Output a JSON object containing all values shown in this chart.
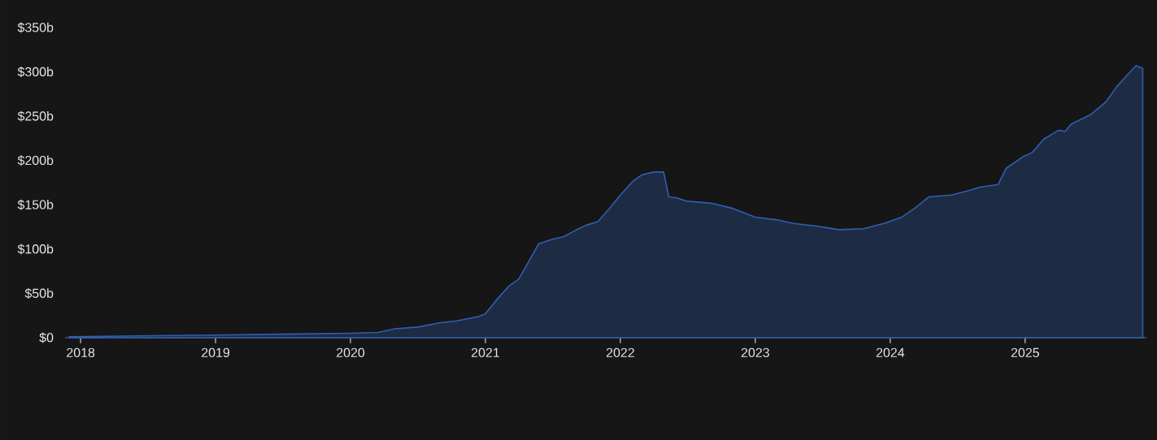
{
  "chart_data": {
    "type": "area",
    "color": "#2f5fb0",
    "x": [
      "2017-12-01",
      "2018-06-01",
      "2019-01-01",
      "2019-07-01",
      "2020-01-01",
      "2020-03-15",
      "2020-05-01",
      "2020-07-01",
      "2020-09-01",
      "2020-10-15",
      "2020-12-15",
      "2021-01-01",
      "2021-02-05",
      "2021-03-05",
      "2021-04-01",
      "2021-05-05",
      "2021-05-25",
      "2021-07-01",
      "2021-08-01",
      "2021-09-05",
      "2021-10-01",
      "2021-11-01",
      "2021-12-01",
      "2022-01-01",
      "2022-02-05",
      "2022-03-01",
      "2022-04-01",
      "2022-04-28",
      "2022-05-12",
      "2022-06-01",
      "2022-07-01",
      "2022-09-01",
      "2022-11-01",
      "2023-01-01",
      "2023-03-01",
      "2023-04-15",
      "2023-06-15",
      "2023-08-15",
      "2023-10-20",
      "2023-12-15",
      "2024-02-01",
      "2024-03-10",
      "2024-04-15",
      "2024-06-15",
      "2024-08-01",
      "2024-09-01",
      "2024-10-20",
      "2024-11-10",
      "2024-12-25",
      "2025-01-20",
      "2025-02-20",
      "2025-04-01",
      "2025-04-20",
      "2025-05-05",
      "2025-06-28",
      "2025-08-07",
      "2025-09-05",
      "2025-10-12",
      "2025-10-28",
      "2025-11-15"
    ],
    "values": [
      1,
      2,
      3,
      4,
      5,
      6,
      10,
      12,
      17,
      19,
      24,
      27,
      45,
      58,
      66,
      91,
      106,
      111,
      114,
      122,
      127,
      131,
      145,
      161,
      177,
      184,
      187,
      187,
      159,
      158,
      154,
      152,
      146,
      136,
      133,
      129,
      126,
      122,
      123,
      129,
      136,
      147,
      159,
      161,
      166,
      170,
      173,
      191,
      204,
      209,
      224,
      234,
      233,
      241,
      252,
      266,
      283,
      300,
      307,
      304
    ],
    "xlim": [
      "2017-11-20",
      "2025-11-25"
    ],
    "xticks": [
      "2018",
      "2019",
      "2020",
      "2021",
      "2022",
      "2023",
      "2024",
      "2025"
    ],
    "ylim": [
      0,
      350
    ],
    "yticks": [
      {
        "value": 0,
        "label": "$0"
      },
      {
        "value": 50,
        "label": "$50b"
      },
      {
        "value": 100,
        "label": "$100b"
      },
      {
        "value": 150,
        "label": "$150b"
      },
      {
        "value": 200,
        "label": "$200b"
      },
      {
        "value": 250,
        "label": "$250b"
      },
      {
        "value": 300,
        "label": "$300b"
      },
      {
        "value": 350,
        "label": "$350b"
      }
    ],
    "grid": false
  }
}
